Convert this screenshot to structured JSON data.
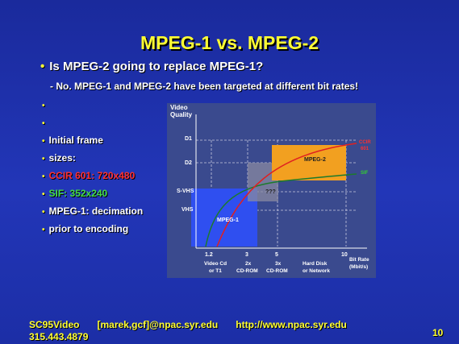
{
  "slide": {
    "title": "MPEG-1 vs. MPEG-2",
    "question": "Is MPEG-2 going to replace MPEG-1?",
    "answer": "- No. MPEG-1 and MPEG-2 have been targeted at different bit rates!",
    "list": [
      {
        "text": ""
      },
      {
        "text": ""
      },
      {
        "text": "Initial frame"
      },
      {
        "text": "sizes:"
      },
      {
        "text": "CCIR 601: 720x480"
      },
      {
        "text": "SIF: 352x240"
      },
      {
        "text": "MPEG-1: decimation"
      },
      {
        "text": "prior to encoding"
      }
    ],
    "page_number": "10"
  },
  "footer": {
    "id": "SC95Video",
    "email": "[marek,gcf]@npac.syr.edu",
    "url": "http://www.npac.syr.edu",
    "phone": "315.443.4879"
  },
  "diagram": {
    "y_axis_title": [
      "Video",
      "Quality"
    ],
    "y_levels": [
      "D1",
      "D2",
      "S-VHS",
      "VHS"
    ],
    "x_ticks": [
      "1.2",
      "3",
      "5",
      "10"
    ],
    "x_axis_title": [
      "Bit Rate",
      "(Mbit/s)"
    ],
    "x_notes": [
      {
        "lines": [
          "Video Cd",
          "or T1"
        ]
      },
      {
        "lines": [
          "2x",
          "CD-ROM"
        ]
      },
      {
        "lines": [
          "3x",
          "CD-ROM"
        ]
      },
      {
        "lines": [
          "Hard Disk",
          "or Network"
        ]
      }
    ],
    "regions": {
      "mpeg1": "MPEG-1",
      "mpeg2": "MPEG-2",
      "unknown": "???"
    },
    "curve_labels": {
      "red": [
        "CCIR",
        "601"
      ],
      "green": "SIF"
    },
    "colors": {
      "mpeg1": "#2f4ff0",
      "mpeg2": "#f2a020",
      "red_curve": "#e02020",
      "green_curve": "#1c7a2c",
      "bg": "#3a4a8e"
    }
  }
}
